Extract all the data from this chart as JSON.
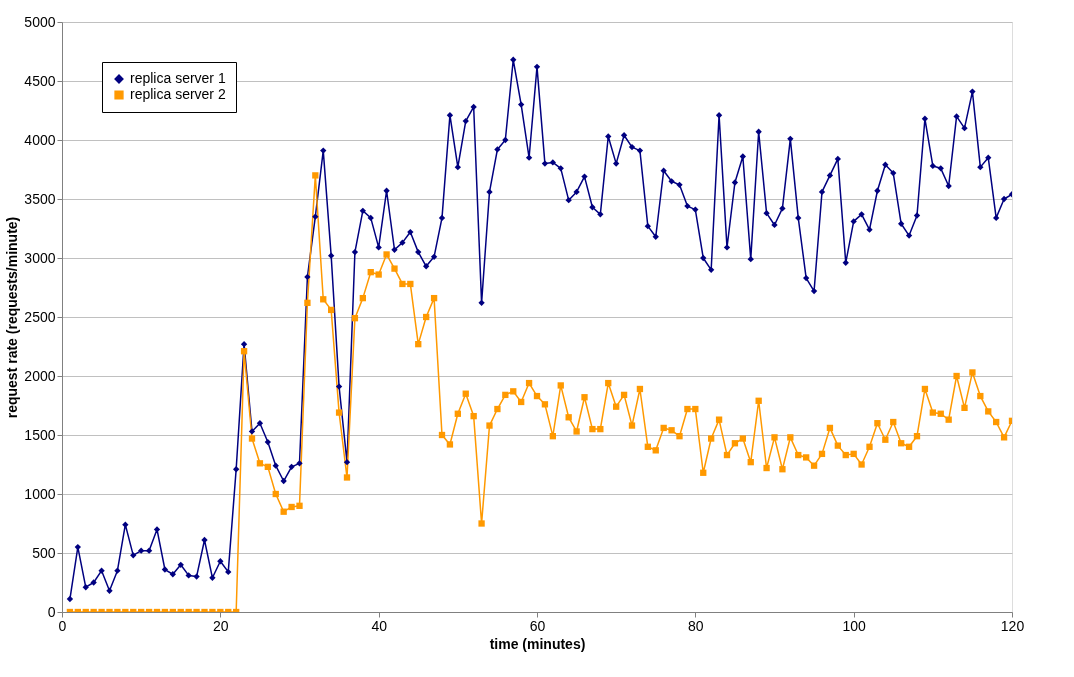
{
  "chart_data": {
    "type": "line",
    "xlabel": "time (minutes)",
    "ylabel": "request rate (requests/minute)",
    "x": [
      1,
      2,
      3,
      4,
      5,
      6,
      7,
      8,
      9,
      10,
      11,
      12,
      13,
      14,
      15,
      16,
      17,
      18,
      19,
      20,
      21,
      22,
      23,
      24,
      25,
      26,
      27,
      28,
      29,
      30,
      31,
      32,
      33,
      34,
      35,
      36,
      37,
      38,
      39,
      40,
      41,
      42,
      43,
      44,
      45,
      46,
      47,
      48,
      49,
      50,
      51,
      52,
      53,
      54,
      55,
      56,
      57,
      58,
      59,
      60,
      61,
      62,
      63,
      64,
      65,
      66,
      67,
      68,
      69,
      70,
      71,
      72,
      73,
      74,
      75,
      76,
      77,
      78,
      79,
      80,
      81,
      82,
      83,
      84,
      85,
      86,
      87,
      88,
      89,
      90,
      91,
      92,
      93,
      94,
      95,
      96,
      97,
      98,
      99,
      100,
      101,
      102,
      103,
      104,
      105,
      106,
      107,
      108,
      109,
      110,
      111,
      112,
      113,
      114,
      115,
      116,
      117,
      118,
      119,
      120
    ],
    "series": [
      {
        "name": "replica server 1",
        "color": "#000080",
        "marker": "diamond",
        "values": [
          110,
          550,
          210,
          250,
          350,
          180,
          350,
          740,
          480,
          520,
          520,
          700,
          360,
          320,
          400,
          310,
          300,
          610,
          290,
          430,
          340,
          1210,
          2270,
          1530,
          1600,
          1440,
          1240,
          1110,
          1230,
          1260,
          2840,
          3350,
          3910,
          3020,
          1910,
          1270,
          3050,
          3400,
          3340,
          3090,
          3570,
          3070,
          3130,
          3220,
          3050,
          2930,
          3010,
          3340,
          4210,
          3770,
          4160,
          4280,
          2620,
          3560,
          3920,
          4000,
          4680,
          4300,
          3850,
          4620,
          3800,
          3810,
          3760,
          3490,
          3560,
          3690,
          3430,
          3370,
          4030,
          3800,
          4040,
          3940,
          3910,
          3270,
          3180,
          3740,
          3650,
          3620,
          3440,
          3410,
          3000,
          2900,
          4210,
          3090,
          3640,
          3860,
          2990,
          4070,
          3380,
          3280,
          3420,
          4010,
          3340,
          2830,
          2720,
          3560,
          3700,
          3840,
          2960,
          3310,
          3370,
          3240,
          3570,
          3790,
          3720,
          3290,
          3190,
          3360,
          4180,
          3780,
          3760,
          3610,
          4200,
          4100,
          4410,
          3770,
          3850,
          3340,
          3500,
          3540
        ]
      },
      {
        "name": "replica server 2",
        "color": "#ff9900",
        "marker": "square",
        "values": [
          0,
          0,
          0,
          0,
          0,
          0,
          0,
          0,
          0,
          0,
          0,
          0,
          0,
          0,
          0,
          0,
          0,
          0,
          0,
          0,
          0,
          0,
          2210,
          1470,
          1260,
          1230,
          1000,
          850,
          890,
          900,
          2620,
          3700,
          2650,
          2560,
          1690,
          1140,
          2490,
          2660,
          2880,
          2860,
          3030,
          2910,
          2780,
          2780,
          2270,
          2500,
          2660,
          1500,
          1420,
          1680,
          1850,
          1660,
          750,
          1580,
          1720,
          1840,
          1870,
          1780,
          1940,
          1830,
          1760,
          1490,
          1920,
          1650,
          1530,
          1820,
          1550,
          1550,
          1940,
          1740,
          1840,
          1580,
          1890,
          1400,
          1370,
          1560,
          1540,
          1490,
          1720,
          1720,
          1180,
          1470,
          1630,
          1330,
          1430,
          1470,
          1270,
          1790,
          1220,
          1480,
          1210,
          1480,
          1330,
          1310,
          1240,
          1340,
          1560,
          1410,
          1330,
          1340,
          1250,
          1400,
          1600,
          1460,
          1610,
          1430,
          1400,
          1490,
          1890,
          1690,
          1680,
          1630,
          2000,
          1730,
          2030,
          1830,
          1700,
          1610,
          1480,
          1620
        ]
      }
    ],
    "xlim": [
      0,
      120
    ],
    "xticks": [
      0,
      20,
      40,
      60,
      80,
      100,
      120
    ],
    "ylim": [
      0,
      5000
    ],
    "yticks": [
      0,
      500,
      1000,
      1500,
      2000,
      2500,
      3000,
      3500,
      4000,
      4500,
      5000
    ],
    "grid": "y",
    "legend": "top left",
    "line_style": "solid"
  }
}
